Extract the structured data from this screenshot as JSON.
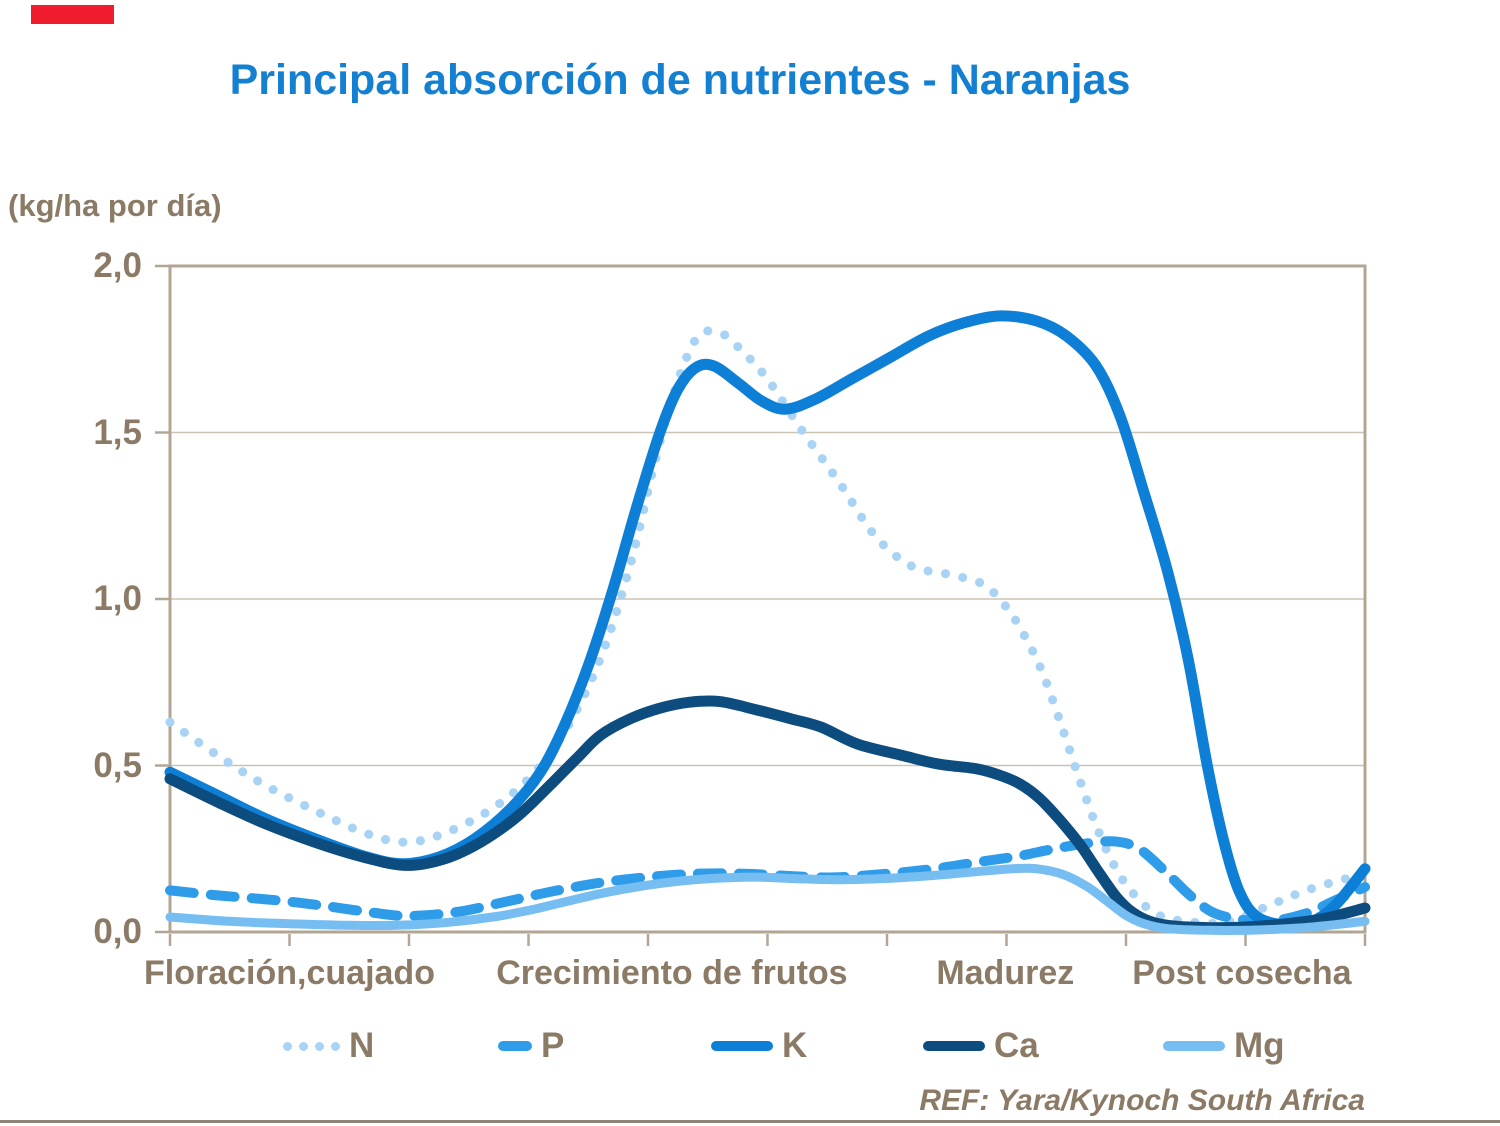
{
  "slide": {
    "title": "Principal absorción de nutrientes - Naranjas",
    "y_axis_unit_label": "(kg/ha por día)",
    "ref_text": "REF: Yara/Kynoch South Africa",
    "colors": {
      "accent_bar": "#ee1c2d",
      "title": "#1480d2",
      "text_brown": "#8b7a65",
      "axis": "#b3a594",
      "grid": "#cdc3b4",
      "bottom_rule": "#8e8577"
    }
  },
  "chart_data": {
    "type": "line",
    "title": "Principal absorción de nutrientes - Naranjas",
    "xlabel": "",
    "ylabel": "(kg/ha por día)",
    "ylim": [
      0,
      2
    ],
    "grid": "horizontal",
    "legend_position": "bottom",
    "y_ticks": [
      {
        "label": "0,0",
        "value": 0
      },
      {
        "label": "0,5",
        "value": 0.5
      },
      {
        "label": "1,0",
        "value": 1
      },
      {
        "label": "1,5",
        "value": 1.5
      },
      {
        "label": "2,0",
        "value": 2
      }
    ],
    "x_tick_count": 11,
    "x_categories": [
      {
        "label": "Floración,cuajado",
        "pos": 0.1
      },
      {
        "label": "Crecimiento de frutos",
        "pos": 0.42
      },
      {
        "label": "Madurez",
        "pos": 0.699
      },
      {
        "label": "Post cosecha",
        "pos": 0.897
      }
    ],
    "series": [
      {
        "name": "N",
        "color": "#a9d3f5",
        "style": "dotted",
        "width": 9,
        "points": [
          [
            0,
            0.63
          ],
          [
            0.04,
            0.53
          ],
          [
            0.08,
            0.44
          ],
          [
            0.13,
            0.35
          ],
          [
            0.165,
            0.295
          ],
          [
            0.195,
            0.27
          ],
          [
            0.225,
            0.29
          ],
          [
            0.265,
            0.36
          ],
          [
            0.3,
            0.46
          ],
          [
            0.33,
            0.6
          ],
          [
            0.36,
            0.82
          ],
          [
            0.385,
            1.1
          ],
          [
            0.405,
            1.4
          ],
          [
            0.42,
            1.6
          ],
          [
            0.44,
            1.78
          ],
          [
            0.46,
            1.8
          ],
          [
            0.48,
            1.74
          ],
          [
            0.5,
            1.66
          ],
          [
            0.53,
            1.5
          ],
          [
            0.56,
            1.35
          ],
          [
            0.59,
            1.19
          ],
          [
            0.62,
            1.1
          ],
          [
            0.65,
            1.075
          ],
          [
            0.68,
            1.045
          ],
          [
            0.7,
            0.975
          ],
          [
            0.715,
            0.89
          ],
          [
            0.73,
            0.78
          ],
          [
            0.745,
            0.63
          ],
          [
            0.76,
            0.47
          ],
          [
            0.775,
            0.32
          ],
          [
            0.79,
            0.2
          ],
          [
            0.805,
            0.12
          ],
          [
            0.825,
            0.055
          ],
          [
            0.85,
            0.032
          ],
          [
            0.885,
            0.03
          ],
          [
            0.92,
            0.08
          ],
          [
            0.955,
            0.13
          ],
          [
            1,
            0.175
          ]
        ]
      },
      {
        "name": "P",
        "color": "#2f9cea",
        "style": "dashed",
        "width": 10,
        "points": [
          [
            0,
            0.125
          ],
          [
            0.04,
            0.11
          ],
          [
            0.09,
            0.095
          ],
          [
            0.13,
            0.078
          ],
          [
            0.17,
            0.058
          ],
          [
            0.2,
            0.048
          ],
          [
            0.24,
            0.06
          ],
          [
            0.28,
            0.09
          ],
          [
            0.32,
            0.122
          ],
          [
            0.36,
            0.148
          ],
          [
            0.4,
            0.165
          ],
          [
            0.44,
            0.175
          ],
          [
            0.48,
            0.175
          ],
          [
            0.52,
            0.168
          ],
          [
            0.555,
            0.164
          ],
          [
            0.6,
            0.175
          ],
          [
            0.64,
            0.19
          ],
          [
            0.68,
            0.212
          ],
          [
            0.71,
            0.228
          ],
          [
            0.74,
            0.25
          ],
          [
            0.765,
            0.265
          ],
          [
            0.79,
            0.272
          ],
          [
            0.81,
            0.252
          ],
          [
            0.832,
            0.185
          ],
          [
            0.852,
            0.115
          ],
          [
            0.872,
            0.06
          ],
          [
            0.895,
            0.038
          ],
          [
            0.92,
            0.032
          ],
          [
            0.95,
            0.055
          ],
          [
            0.975,
            0.095
          ],
          [
            1,
            0.135
          ]
        ]
      },
      {
        "name": "K",
        "color": "#0e7fd6",
        "style": "solid",
        "width": 11,
        "points": [
          [
            0,
            0.48
          ],
          [
            0.04,
            0.41
          ],
          [
            0.08,
            0.34
          ],
          [
            0.125,
            0.275
          ],
          [
            0.165,
            0.225
          ],
          [
            0.195,
            0.205
          ],
          [
            0.225,
            0.225
          ],
          [
            0.255,
            0.28
          ],
          [
            0.285,
            0.37
          ],
          [
            0.31,
            0.48
          ],
          [
            0.33,
            0.62
          ],
          [
            0.35,
            0.8
          ],
          [
            0.37,
            1.02
          ],
          [
            0.39,
            1.27
          ],
          [
            0.41,
            1.5
          ],
          [
            0.425,
            1.63
          ],
          [
            0.44,
            1.695
          ],
          [
            0.455,
            1.7
          ],
          [
            0.475,
            1.65
          ],
          [
            0.495,
            1.595
          ],
          [
            0.515,
            1.57
          ],
          [
            0.54,
            1.6
          ],
          [
            0.57,
            1.66
          ],
          [
            0.6,
            1.72
          ],
          [
            0.635,
            1.79
          ],
          [
            0.665,
            1.83
          ],
          [
            0.695,
            1.85
          ],
          [
            0.725,
            1.835
          ],
          [
            0.75,
            1.79
          ],
          [
            0.775,
            1.7
          ],
          [
            0.795,
            1.55
          ],
          [
            0.815,
            1.32
          ],
          [
            0.835,
            1.08
          ],
          [
            0.852,
            0.82
          ],
          [
            0.868,
            0.5
          ],
          [
            0.882,
            0.27
          ],
          [
            0.895,
            0.12
          ],
          [
            0.91,
            0.045
          ],
          [
            0.935,
            0.02
          ],
          [
            0.955,
            0.03
          ],
          [
            0.975,
            0.08
          ],
          [
            1,
            0.19
          ]
        ]
      },
      {
        "name": "Ca",
        "color": "#0d4c7f",
        "style": "solid",
        "width": 11,
        "points": [
          [
            0,
            0.46
          ],
          [
            0.04,
            0.39
          ],
          [
            0.08,
            0.325
          ],
          [
            0.125,
            0.265
          ],
          [
            0.165,
            0.222
          ],
          [
            0.198,
            0.2
          ],
          [
            0.23,
            0.22
          ],
          [
            0.26,
            0.27
          ],
          [
            0.29,
            0.345
          ],
          [
            0.315,
            0.43
          ],
          [
            0.34,
            0.52
          ],
          [
            0.36,
            0.59
          ],
          [
            0.385,
            0.64
          ],
          [
            0.41,
            0.672
          ],
          [
            0.435,
            0.69
          ],
          [
            0.46,
            0.692
          ],
          [
            0.49,
            0.668
          ],
          [
            0.52,
            0.64
          ],
          [
            0.545,
            0.615
          ],
          [
            0.575,
            0.565
          ],
          [
            0.613,
            0.53
          ],
          [
            0.642,
            0.505
          ],
          [
            0.675,
            0.49
          ],
          [
            0.695,
            0.47
          ],
          [
            0.712,
            0.443
          ],
          [
            0.728,
            0.4
          ],
          [
            0.745,
            0.335
          ],
          [
            0.762,
            0.26
          ],
          [
            0.778,
            0.175
          ],
          [
            0.792,
            0.105
          ],
          [
            0.805,
            0.06
          ],
          [
            0.82,
            0.032
          ],
          [
            0.84,
            0.018
          ],
          [
            0.87,
            0.013
          ],
          [
            0.9,
            0.015
          ],
          [
            0.935,
            0.025
          ],
          [
            0.965,
            0.04
          ],
          [
            1,
            0.072
          ]
        ]
      },
      {
        "name": "Mg",
        "color": "#76bdf2",
        "style": "solid",
        "width": 9,
        "points": [
          [
            0,
            0.045
          ],
          [
            0.05,
            0.032
          ],
          [
            0.1,
            0.025
          ],
          [
            0.15,
            0.02
          ],
          [
            0.19,
            0.02
          ],
          [
            0.23,
            0.028
          ],
          [
            0.27,
            0.045
          ],
          [
            0.3,
            0.065
          ],
          [
            0.33,
            0.09
          ],
          [
            0.36,
            0.115
          ],
          [
            0.39,
            0.135
          ],
          [
            0.42,
            0.15
          ],
          [
            0.455,
            0.161
          ],
          [
            0.49,
            0.165
          ],
          [
            0.525,
            0.16
          ],
          [
            0.56,
            0.157
          ],
          [
            0.6,
            0.161
          ],
          [
            0.64,
            0.17
          ],
          [
            0.675,
            0.181
          ],
          [
            0.705,
            0.19
          ],
          [
            0.725,
            0.19
          ],
          [
            0.748,
            0.172
          ],
          [
            0.768,
            0.135
          ],
          [
            0.785,
            0.09
          ],
          [
            0.8,
            0.05
          ],
          [
            0.815,
            0.025
          ],
          [
            0.835,
            0.01
          ],
          [
            0.87,
            0.005
          ],
          [
            0.91,
            0.006
          ],
          [
            0.945,
            0.012
          ],
          [
            0.975,
            0.022
          ],
          [
            1,
            0.032
          ]
        ]
      }
    ]
  }
}
